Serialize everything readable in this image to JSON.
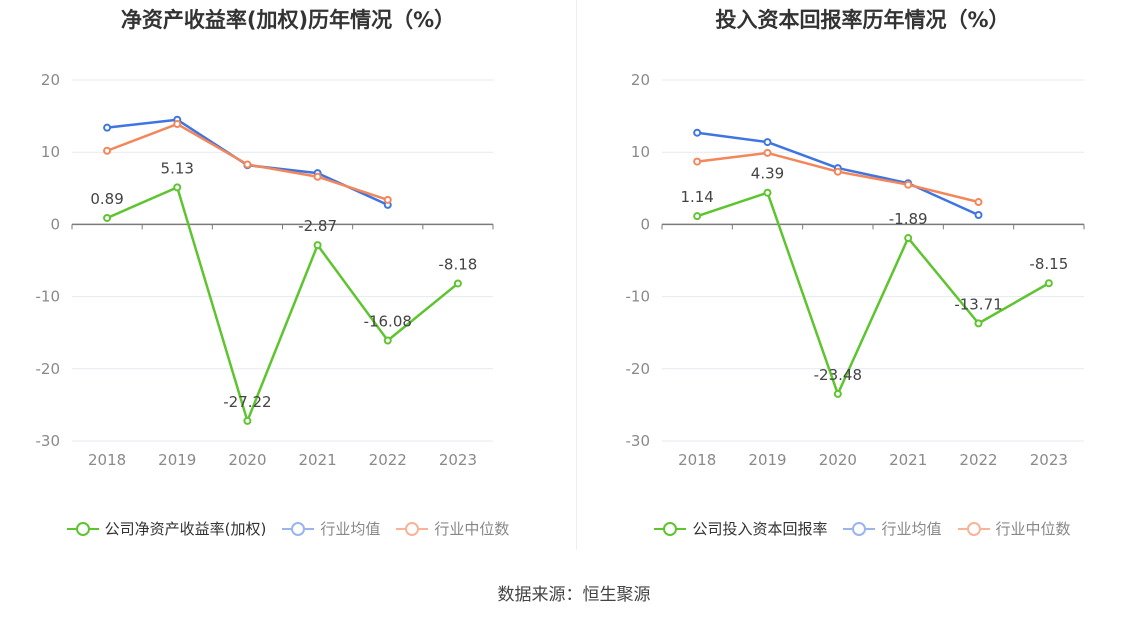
{
  "charts": [
    {
      "title": "净资产收益率(加权)历年情况（%）",
      "legend": [
        "公司净资产收益率(加权)",
        "行业均值",
        "行业中位数"
      ]
    },
    {
      "title": "投入资本回报率历年情况（%）",
      "legend": [
        "公司投入资本回报率",
        "行业均值",
        "行业中位数"
      ]
    }
  ],
  "source": "数据来源：恒生聚源",
  "colors": {
    "company": "#5ec42f",
    "mean": "#3f75e0",
    "median": "#f3865a",
    "grid": "#e6e9f0",
    "axis": "#7a7a7a",
    "tick": "#8a8a8a"
  },
  "chart_data": [
    {
      "type": "line",
      "title": "净资产收益率(加权)历年情况（%）",
      "categories": [
        "2018",
        "2019",
        "2020",
        "2021",
        "2022",
        "2023"
      ],
      "ylim": [
        -30,
        20
      ],
      "yticks": [
        20,
        10,
        0,
        -10,
        -20,
        -30
      ],
      "grid": true,
      "legend_position": "bottom",
      "series": [
        {
          "name": "公司净资产收益率(加权)",
          "values": [
            0.89,
            5.13,
            -27.22,
            -2.87,
            -16.08,
            -8.18
          ],
          "labels": [
            "0.89",
            "5.13",
            "-27.22",
            "-2.87",
            "-16.08",
            "-8.18"
          ],
          "color": "#5ec42f"
        },
        {
          "name": "行业均值",
          "values": [
            13.4,
            14.5,
            8.2,
            7.1,
            2.7,
            null
          ],
          "color": "#3f75e0"
        },
        {
          "name": "行业中位数",
          "values": [
            10.2,
            13.9,
            8.3,
            6.6,
            3.4,
            null
          ],
          "color": "#f3865a"
        }
      ]
    },
    {
      "type": "line",
      "title": "投入资本回报率历年情况（%）",
      "categories": [
        "2018",
        "2019",
        "2020",
        "2021",
        "2022",
        "2023"
      ],
      "ylim": [
        -30,
        20
      ],
      "yticks": [
        20,
        10,
        0,
        -10,
        -20,
        -30
      ],
      "grid": true,
      "legend_position": "bottom",
      "series": [
        {
          "name": "公司投入资本回报率",
          "values": [
            1.14,
            4.39,
            -23.48,
            -1.89,
            -13.71,
            -8.15
          ],
          "labels": [
            "1.14",
            "4.39",
            "-23.48",
            "-1.89",
            "-13.71",
            "-8.15"
          ],
          "color": "#5ec42f"
        },
        {
          "name": "行业均值",
          "values": [
            12.7,
            11.4,
            7.8,
            5.7,
            1.3,
            null
          ],
          "color": "#3f75e0"
        },
        {
          "name": "行业中位数",
          "values": [
            8.7,
            9.9,
            7.3,
            5.5,
            3.1,
            null
          ],
          "color": "#f3865a"
        }
      ]
    }
  ]
}
